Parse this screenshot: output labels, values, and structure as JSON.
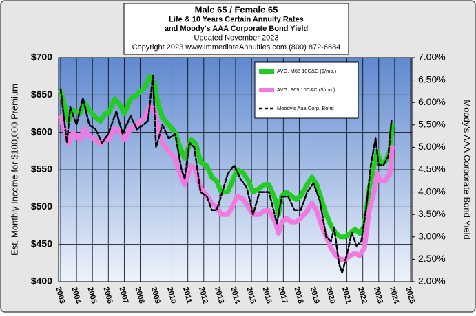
{
  "chart_data": {
    "type": "line",
    "title_lines": [
      "Male 65 / Female 65",
      "Life & 10 Years Certain Annuity Rates",
      "and Moody's AAA Corporate Bond Yield",
      "Updated November 2023",
      "Copyright 2023   www.ImmediateAnnuities.com  (800) 872-6684"
    ],
    "y_label": "Est. Monthly Income for $100,000 Premium",
    "y2_label": "Moody's AAA Corporate Bond Yield",
    "xlim": [
      2003,
      2025
    ],
    "xticks": [
      2003,
      2004,
      2005,
      2006,
      2007,
      2008,
      2009,
      2010,
      2011,
      2012,
      2013,
      2014,
      2015,
      2016,
      2017,
      2018,
      2019,
      2020,
      2021,
      2022,
      2023,
      2024,
      2025
    ],
    "ylim": [
      400,
      700
    ],
    "yticks": [
      {
        "value": 400,
        "label": "$400"
      },
      {
        "value": 450,
        "label": "$450"
      },
      {
        "value": 500,
        "label": "$500"
      },
      {
        "value": 550,
        "label": "$550"
      },
      {
        "value": 600,
        "label": "$600"
      },
      {
        "value": 650,
        "label": "$650"
      },
      {
        "value": 700,
        "label": "$700"
      }
    ],
    "y2lim": [
      2,
      7
    ],
    "y2ticks": [
      {
        "value": 2,
        "label": "2.00%"
      },
      {
        "value": 2.5,
        "label": "2.50%"
      },
      {
        "value": 3,
        "label": "3.00%"
      },
      {
        "value": 3.5,
        "label": "3.50%"
      },
      {
        "value": 4,
        "label": "4.00%"
      },
      {
        "value": 4.5,
        "label": "4.50%"
      },
      {
        "value": 5,
        "label": "5.00%"
      },
      {
        "value": 5.5,
        "label": "5.50%"
      },
      {
        "value": 6,
        "label": "6.00%"
      },
      {
        "value": 6.5,
        "label": "6.50%"
      },
      {
        "value": 7,
        "label": "7.00%"
      }
    ],
    "grid": true,
    "legend": "upper right",
    "series": [
      {
        "name": "AVG. M65 10C&C ($/mo.)",
        "color": "#22cc22",
        "dashed": false,
        "x": [
          2003.0,
          2003.2,
          2003.5,
          2003.8,
          2004.2,
          2004.5,
          2004.8,
          2005.2,
          2005.5,
          2005.8,
          2006.0,
          2006.4,
          2006.8,
          2007.0,
          2007.4,
          2007.8,
          2008.0,
          2008.3,
          2008.6,
          2008.9,
          2009.1,
          2009.4,
          2009.8,
          2010.2,
          2010.5,
          2010.8,
          2011.2,
          2011.5,
          2011.8,
          2012.2,
          2012.5,
          2012.8,
          2013.1,
          2013.5,
          2013.8,
          2014.1,
          2014.5,
          2014.8,
          2015.1,
          2015.5,
          2015.8,
          2016.1,
          2016.5,
          2016.7,
          2016.9,
          2017.2,
          2017.5,
          2017.8,
          2018.1,
          2018.5,
          2018.8,
          2019.1,
          2019.4,
          2019.7,
          2020.0,
          2020.3,
          2020.6,
          2020.9,
          2021.2,
          2021.5,
          2021.8,
          2022.1,
          2022.4,
          2022.7,
          2022.9,
          2023.1,
          2023.4,
          2023.7,
          2023.85
        ],
        "values": [
          655,
          640,
          615,
          630,
          625,
          640,
          630,
          620,
          615,
          625,
          625,
          645,
          635,
          625,
          645,
          650,
          655,
          660,
          675,
          665,
          640,
          620,
          610,
          600,
          580,
          565,
          590,
          585,
          560,
          555,
          540,
          535,
          520,
          520,
          535,
          550,
          545,
          535,
          520,
          525,
          530,
          530,
          510,
          490,
          515,
          520,
          515,
          510,
          515,
          530,
          540,
          530,
          510,
          490,
          475,
          465,
          460,
          460,
          465,
          470,
          465,
          475,
          525,
          555,
          575,
          560,
          560,
          575,
          610
        ]
      },
      {
        "name": "AVG. F65 10C&C ($/mo.)",
        "color": "#f07ae0",
        "dashed": false,
        "x": [
          2003.0,
          2003.3,
          2003.5,
          2003.8,
          2004.2,
          2004.5,
          2004.8,
          2005.2,
          2005.5,
          2005.8,
          2006.0,
          2006.4,
          2006.8,
          2007.0,
          2007.4,
          2007.8,
          2008.0,
          2008.3,
          2008.6,
          2008.9,
          2009.1,
          2009.4,
          2009.8,
          2010.2,
          2010.5,
          2010.8,
          2011.2,
          2011.5,
          2011.8,
          2012.2,
          2012.5,
          2012.8,
          2013.1,
          2013.5,
          2013.8,
          2014.1,
          2014.5,
          2014.8,
          2015.1,
          2015.5,
          2015.8,
          2016.1,
          2016.5,
          2016.7,
          2016.9,
          2017.2,
          2017.5,
          2017.8,
          2018.1,
          2018.5,
          2018.8,
          2019.1,
          2019.4,
          2019.7,
          2020.0,
          2020.3,
          2020.6,
          2020.9,
          2021.2,
          2021.5,
          2021.8,
          2022.1,
          2022.4,
          2022.7,
          2022.9,
          2023.1,
          2023.4,
          2023.7,
          2023.85
        ],
        "values": [
          620,
          600,
          585,
          600,
          590,
          605,
          595,
          590,
          585,
          590,
          590,
          605,
          600,
          590,
          605,
          610,
          615,
          620,
          635,
          630,
          605,
          585,
          575,
          565,
          545,
          530,
          555,
          550,
          525,
          515,
          505,
          500,
          490,
          490,
          500,
          515,
          510,
          500,
          490,
          490,
          495,
          495,
          480,
          465,
          480,
          485,
          480,
          480,
          485,
          495,
          505,
          495,
          475,
          460,
          445,
          435,
          430,
          430,
          435,
          438,
          435,
          445,
          495,
          520,
          545,
          535,
          535,
          545,
          580
        ]
      },
      {
        "name": "Moody's Aaa Corp. Bond",
        "color": "#000000",
        "dashed": true,
        "axis": "y2",
        "x": [
          2003.0,
          2003.4,
          2003.6,
          2004.0,
          2004.4,
          2004.8,
          2005.2,
          2005.6,
          2006.0,
          2006.5,
          2006.9,
          2007.4,
          2007.8,
          2008.2,
          2008.5,
          2008.8,
          2009.0,
          2009.4,
          2009.8,
          2010.2,
          2010.6,
          2010.8,
          2011.1,
          2011.4,
          2011.8,
          2012.2,
          2012.5,
          2012.8,
          2013.0,
          2013.5,
          2013.9,
          2014.3,
          2014.7,
          2015.1,
          2015.5,
          2015.8,
          2016.1,
          2016.6,
          2016.9,
          2017.3,
          2017.7,
          2018.1,
          2018.5,
          2018.9,
          2019.3,
          2019.7,
          2020.0,
          2020.2,
          2020.5,
          2020.7,
          2021.0,
          2021.3,
          2021.6,
          2021.9,
          2022.2,
          2022.5,
          2022.8,
          2023.0,
          2023.3,
          2023.6,
          2023.8
        ],
        "values": [
          6.3,
          5.1,
          5.9,
          5.5,
          6.1,
          5.5,
          5.4,
          5.1,
          5.3,
          5.8,
          5.3,
          5.7,
          5.4,
          5.5,
          5.6,
          6.6,
          5.0,
          5.5,
          5.2,
          5.3,
          4.5,
          4.3,
          5.1,
          5.0,
          4.0,
          3.9,
          3.6,
          3.6,
          3.8,
          4.4,
          4.6,
          4.3,
          4.1,
          3.5,
          4.0,
          4.0,
          4.0,
          3.3,
          3.9,
          3.9,
          3.6,
          3.6,
          4.0,
          4.2,
          3.8,
          3.0,
          2.9,
          3.2,
          2.4,
          2.2,
          2.6,
          3.1,
          2.8,
          2.9,
          3.6,
          4.6,
          5.2,
          4.6,
          4.6,
          4.8,
          5.6
        ]
      }
    ]
  }
}
